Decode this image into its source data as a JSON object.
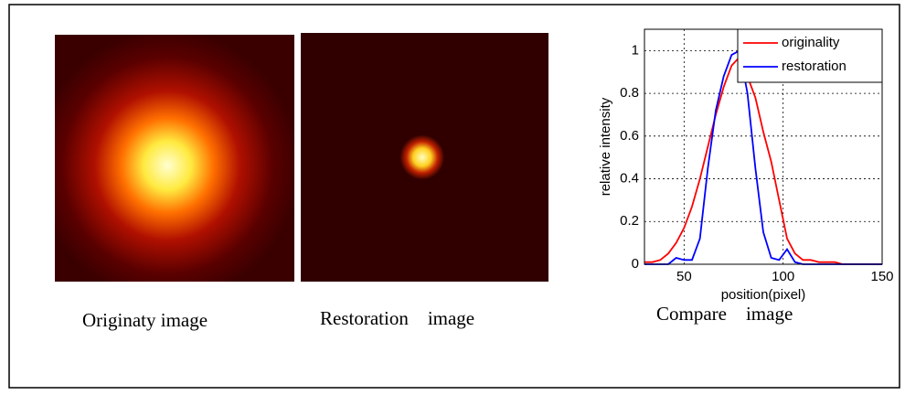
{
  "captions": {
    "original": "Originaty image",
    "restoration": "Restoration    image",
    "compare": "Compare    image"
  },
  "chart_data": {
    "type": "line",
    "xlabel": "position(pixel)",
    "ylabel": "relative intensity",
    "x": [
      30,
      34,
      38,
      42,
      46,
      50,
      54,
      58,
      62,
      66,
      70,
      74,
      78,
      82,
      86,
      90,
      94,
      98,
      102,
      106,
      110,
      114,
      118,
      122,
      126,
      130,
      134,
      138,
      142,
      146,
      150
    ],
    "series": [
      {
        "name": "originality",
        "color": "#ff0000",
        "values": [
          0.01,
          0.01,
          0.02,
          0.05,
          0.1,
          0.17,
          0.27,
          0.4,
          0.55,
          0.7,
          0.83,
          0.93,
          0.97,
          0.88,
          0.78,
          0.62,
          0.48,
          0.3,
          0.12,
          0.05,
          0.02,
          0.02,
          0.01,
          0.01,
          0.01,
          0,
          0,
          0,
          0,
          0,
          0
        ]
      },
      {
        "name": "restoration",
        "color": "#0000ff",
        "values": [
          0,
          0,
          0,
          0,
          0.03,
          0.02,
          0.02,
          0.12,
          0.45,
          0.72,
          0.88,
          0.98,
          1.0,
          0.8,
          0.45,
          0.15,
          0.03,
          0.02,
          0.07,
          0.01,
          0,
          0,
          0,
          0,
          0,
          0,
          0,
          0,
          0,
          0,
          0
        ]
      }
    ],
    "xlim": [
      30,
      150
    ],
    "xticks": [
      50,
      100,
      150
    ],
    "ylim": [
      0,
      1.1
    ],
    "yticks": [
      0,
      0.2,
      0.4,
      0.6,
      0.8,
      1
    ],
    "grid": true,
    "legend": "top-right"
  }
}
